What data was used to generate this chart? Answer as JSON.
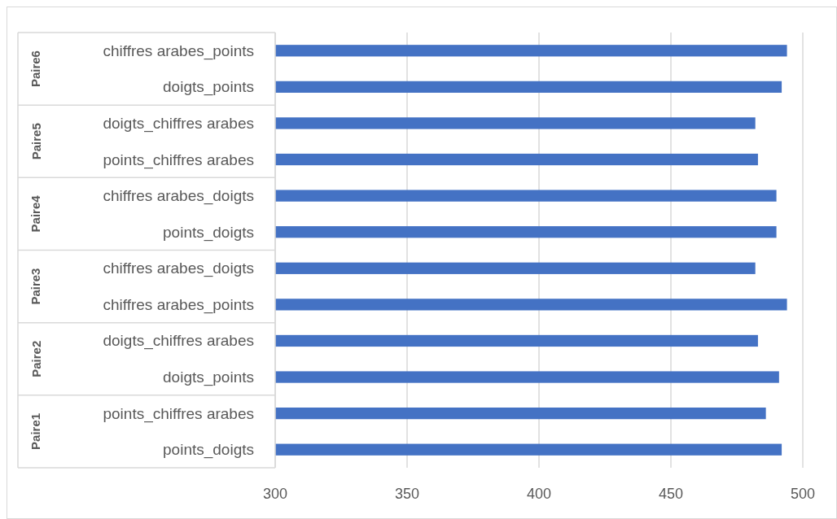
{
  "chart_data": {
    "type": "bar",
    "orientation": "horizontal",
    "categories": [
      "chiffres arabes_points",
      "doigts_points",
      "doigts_chiffres arabes",
      "points_chiffres arabes",
      "chiffres arabes_doigts",
      "points_doigts",
      "chiffres arabes_doigts",
      "chiffres arabes_points",
      "doigts_chiffres arabes",
      "doigts_points",
      "points_chiffres arabes",
      "points_doigts"
    ],
    "values": [
      494,
      492,
      482,
      483,
      490,
      490,
      482,
      494,
      483,
      491,
      486,
      492
    ],
    "color": "#4472c4",
    "annotations": [
      "Paire6",
      "Paire5",
      "Paire4",
      "Paire3",
      "Paire2",
      "Paire1"
    ],
    "xlim": [
      300,
      500
    ],
    "xticks": [
      300,
      350,
      400,
      450,
      500
    ],
    "grid": "x"
  }
}
